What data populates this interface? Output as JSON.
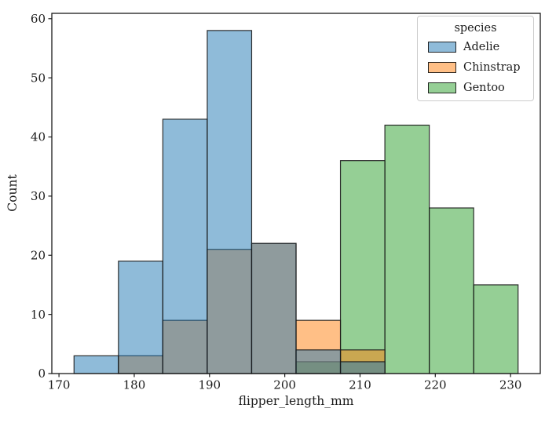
{
  "chart_data": {
    "type": "bar",
    "subtype": "layered-histogram",
    "title": "",
    "xlabel": "flipper_length_mm",
    "ylabel": "Count",
    "bin_edges": [
      172.0,
      177.9,
      183.8,
      189.7,
      195.6,
      201.5,
      207.4,
      213.3,
      219.2,
      225.1,
      231.0
    ],
    "series": [
      {
        "name": "Adelie",
        "color": "#1f77b4",
        "values": [
          3,
          19,
          43,
          58,
          22,
          4,
          2,
          0,
          0,
          0
        ]
      },
      {
        "name": "Chinstrap",
        "color": "#ff7f0e",
        "values": [
          0,
          3,
          9,
          21,
          22,
          9,
          4,
          0,
          0,
          0
        ]
      },
      {
        "name": "Gentoo",
        "color": "#2ca02c",
        "values": [
          0,
          0,
          0,
          0,
          0,
          2,
          36,
          42,
          28,
          15
        ]
      }
    ],
    "fill_alpha": 0.5,
    "edge_color": "#1a1a1a",
    "spine_color": "#1a1a1a",
    "tick_text_color": "#1c1c1c",
    "xlim": [
      169.05,
      233.95
    ],
    "ylim": [
      0,
      60.9
    ],
    "x_ticks": [
      170,
      180,
      190,
      200,
      210,
      220,
      230
    ],
    "y_ticks": [
      0,
      10,
      20,
      30,
      40,
      50,
      60
    ],
    "grid": false,
    "legend": {
      "title": "species",
      "position": "upper-right",
      "entries": [
        "Adelie",
        "Chinstrap",
        "Gentoo"
      ]
    }
  }
}
